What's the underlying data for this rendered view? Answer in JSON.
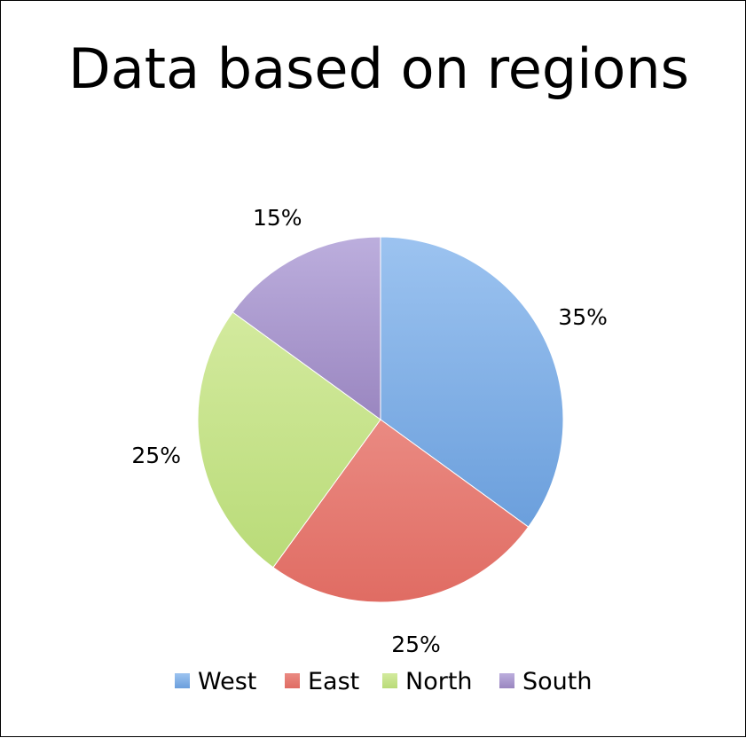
{
  "chart_data": {
    "type": "pie",
    "title": "Data based on regions",
    "categories": [
      "West",
      "East",
      "North",
      "South"
    ],
    "values": [
      35,
      25,
      25,
      15
    ],
    "data_labels": [
      "35%",
      "25%",
      "25%",
      "15%"
    ],
    "colors": [
      "#7aaee6",
      "#e6776f",
      "#c2e184",
      "#a896cc"
    ],
    "start_angle_deg": 0,
    "direction": "clockwise",
    "legend_position": "bottom"
  }
}
